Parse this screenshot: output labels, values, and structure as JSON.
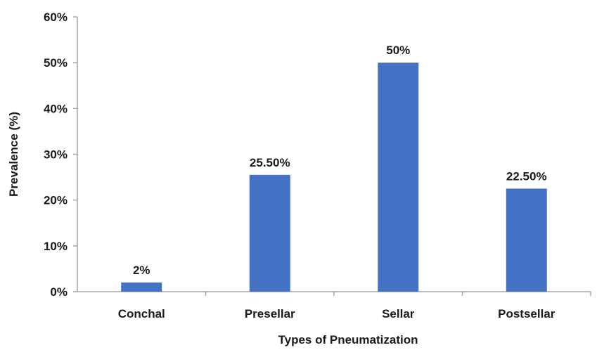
{
  "chart_data": {
    "type": "bar",
    "categories": [
      "Conchal",
      "Presellar",
      "Sellar",
      "Postsellar"
    ],
    "values": [
      2,
      25.5,
      50,
      22.5
    ],
    "data_labels": [
      "2%",
      "25.50%",
      "50%",
      "22.50%"
    ],
    "title": "",
    "xlabel": "Types of Pneumatization",
    "ylabel": "Prevalence  (%)",
    "ylim": [
      0,
      60
    ],
    "yticks": [
      0,
      10,
      20,
      30,
      40,
      50,
      60
    ],
    "ytick_labels": [
      "0%",
      "10%",
      "20%",
      "30%",
      "40%",
      "50%",
      "60%"
    ],
    "grid": false,
    "legend": "none",
    "bar_color": "#4472C4",
    "axis_color": "#A6A6A6"
  }
}
